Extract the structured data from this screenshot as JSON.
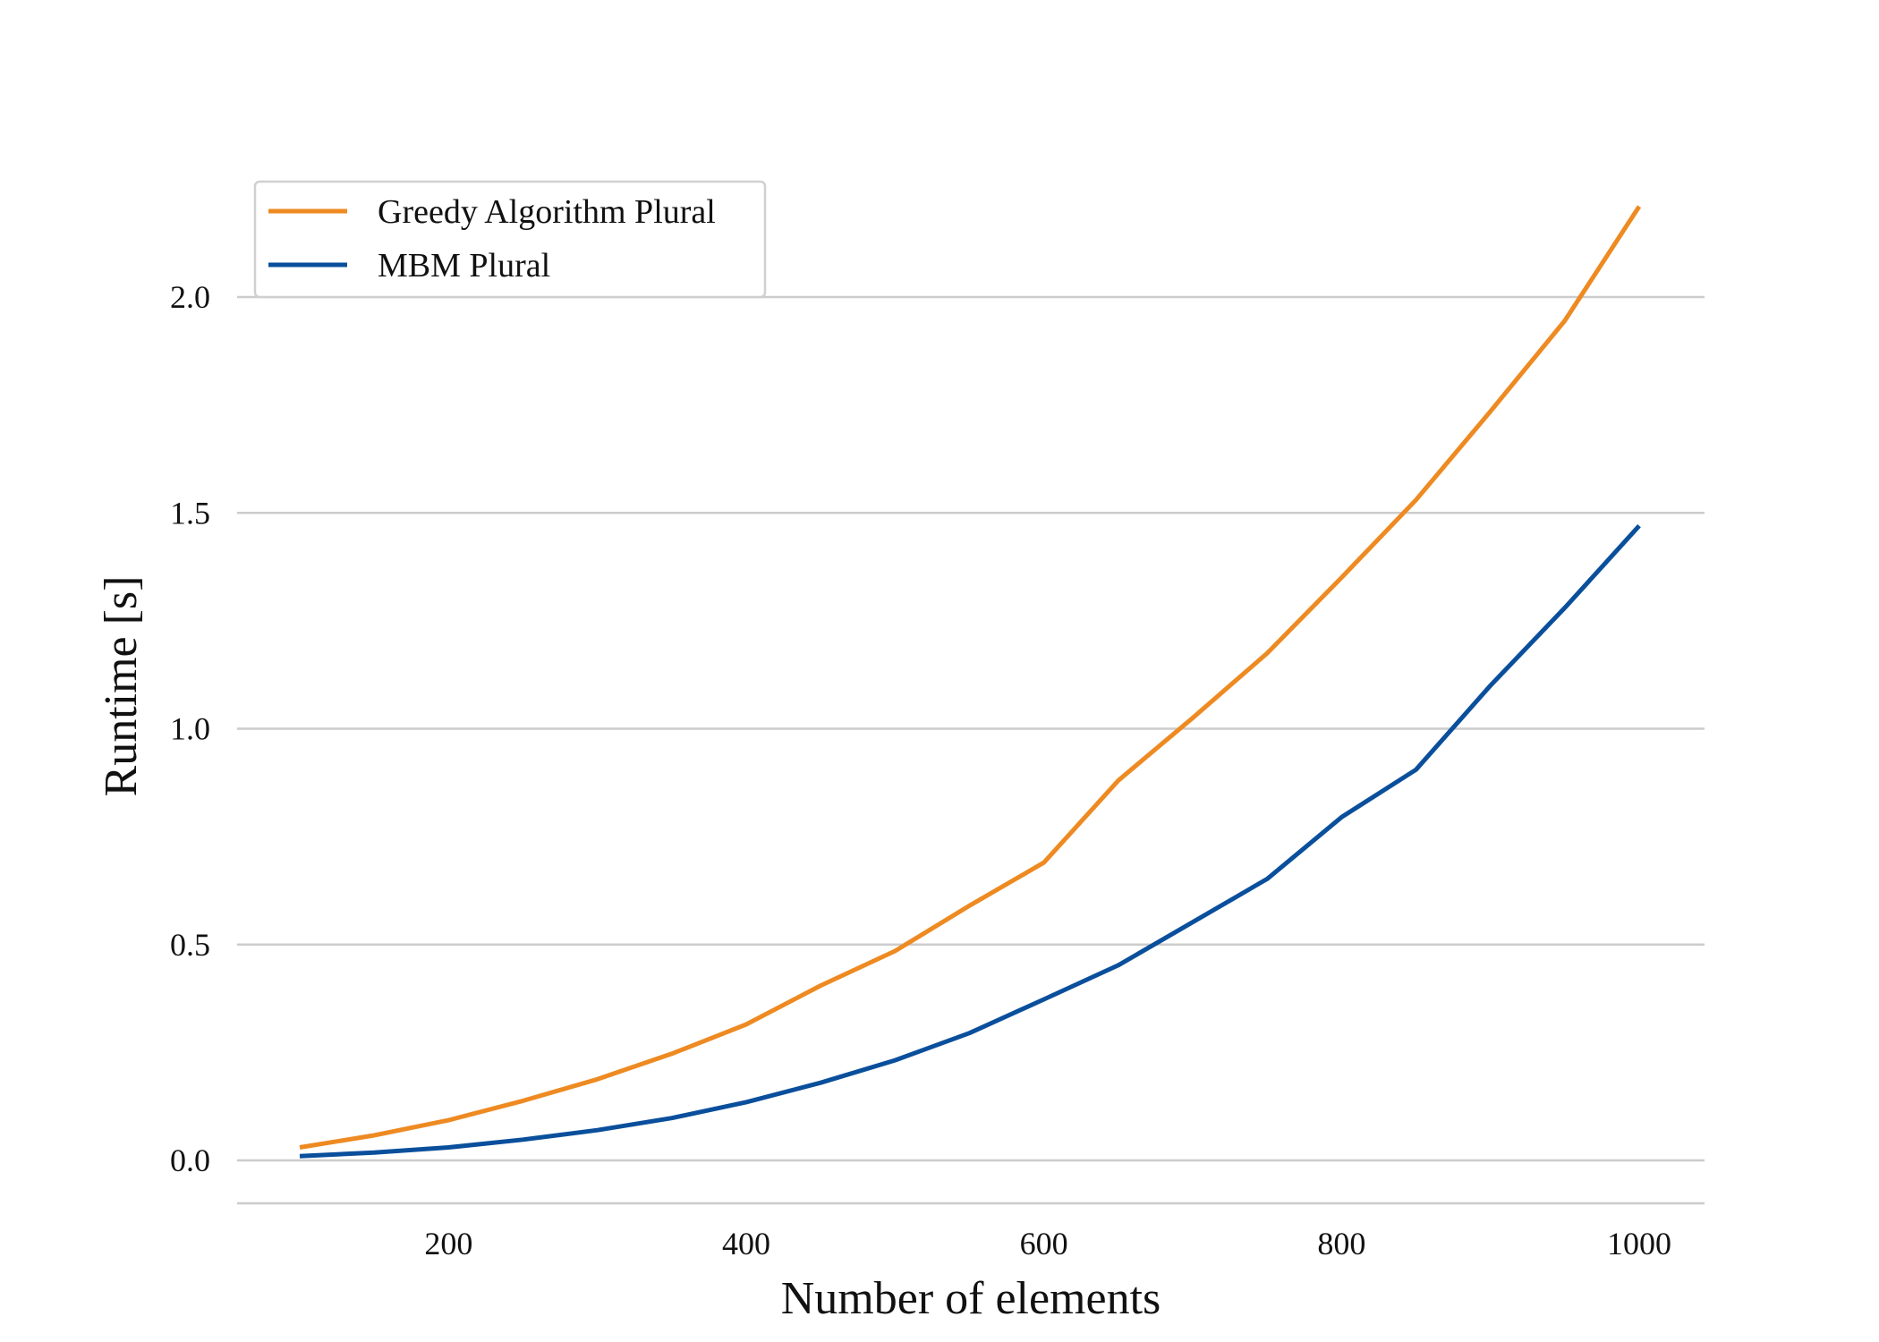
{
  "chart_data": {
    "type": "line",
    "title": "",
    "xlabel": "Number of elements",
    "ylabel": "Runtime [s]",
    "xlim": [
      78,
      1022
    ],
    "ylim": [
      -0.1,
      2.25
    ],
    "xticks": [
      200,
      400,
      600,
      800,
      1000
    ],
    "xtick_labels": [
      "200",
      "400",
      "600",
      "800",
      "1000"
    ],
    "yticks": [
      0.0,
      0.5,
      1.0,
      1.5,
      2.0
    ],
    "ytick_labels": [
      "0.0",
      "0.5",
      "1.0",
      "1.5",
      "2.0"
    ],
    "grid": "horizontal",
    "legend_position": "top-left",
    "x": [
      100,
      150,
      200,
      250,
      300,
      350,
      400,
      450,
      500,
      550,
      600,
      650,
      700,
      750,
      800,
      850,
      900,
      950,
      1000
    ],
    "series": [
      {
        "name": "Greedy Algorithm Plural",
        "color": "#ee8a22",
        "values": [
          0.03,
          0.058,
          0.093,
          0.138,
          0.188,
          0.247,
          0.315,
          0.405,
          0.485,
          0.59,
          0.69,
          0.88,
          1.025,
          1.175,
          1.35,
          1.53,
          1.735,
          1.945,
          2.21
        ]
      },
      {
        "name": "MBM Plural",
        "color": "#0a4f9c",
        "values": [
          0.01,
          0.018,
          0.03,
          0.048,
          0.07,
          0.098,
          0.135,
          0.18,
          0.232,
          0.295,
          0.373,
          0.452,
          0.552,
          0.652,
          0.795,
          0.905,
          1.1,
          1.28,
          1.47
        ]
      }
    ]
  }
}
